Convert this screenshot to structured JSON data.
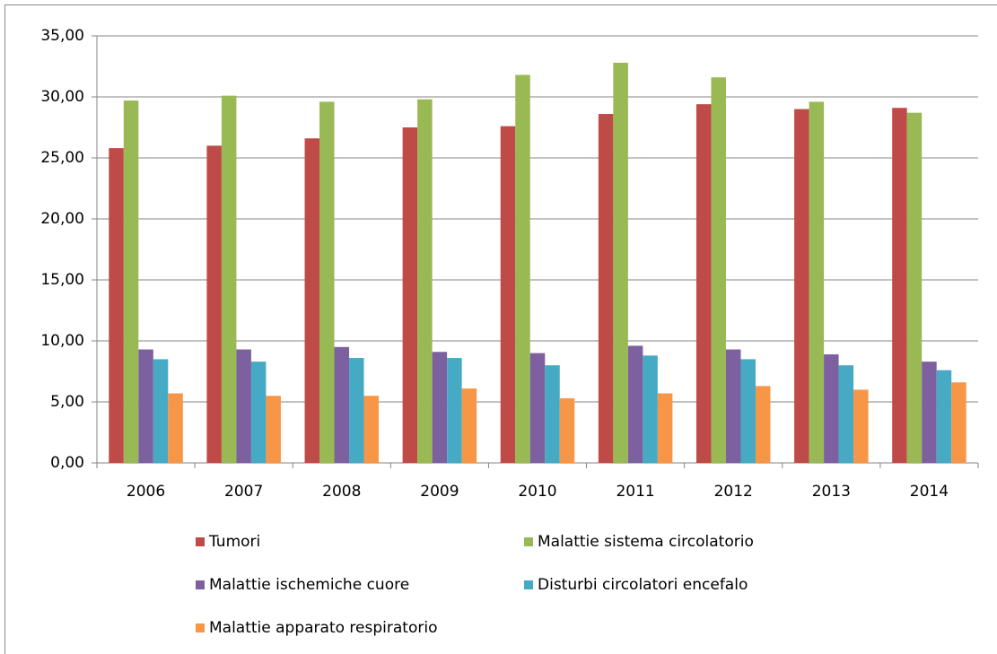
{
  "chart_data": {
    "type": "bar",
    "categories": [
      "2006",
      "2007",
      "2008",
      "2009",
      "2010",
      "2011",
      "2012",
      "2013",
      "2014"
    ],
    "series": [
      {
        "name": "Tumori",
        "color": "#be4b48",
        "values": [
          25.8,
          26.0,
          26.6,
          27.5,
          27.6,
          28.6,
          29.4,
          29.0,
          29.1
        ]
      },
      {
        "name": "Malattie sistema circolatorio",
        "color": "#98b954",
        "values": [
          29.7,
          30.1,
          29.6,
          29.8,
          31.8,
          32.8,
          31.6,
          29.6,
          28.7
        ]
      },
      {
        "name": "Malattie ischemiche cuore",
        "color": "#7d60a0",
        "values": [
          9.3,
          9.3,
          9.5,
          9.1,
          9.0,
          9.6,
          9.3,
          8.9,
          8.3
        ]
      },
      {
        "name": "Disturbi circolatori encefalo",
        "color": "#46aac5",
        "values": [
          8.5,
          8.3,
          8.6,
          8.6,
          8.0,
          8.8,
          8.5,
          8.0,
          7.6
        ]
      },
      {
        "name": "Malattie apparato respiratorio",
        "color": "#f79646",
        "values": [
          5.7,
          5.5,
          5.5,
          6.1,
          5.3,
          5.7,
          6.3,
          6.0,
          6.6
        ]
      }
    ],
    "ylim": [
      0,
      35
    ],
    "yticks": [
      {
        "value": 0,
        "label": "0,00"
      },
      {
        "value": 5,
        "label": "5,00"
      },
      {
        "value": 10,
        "label": "10,00"
      },
      {
        "value": 15,
        "label": "15,00"
      },
      {
        "value": 20,
        "label": "20,00"
      },
      {
        "value": 25,
        "label": "25,00"
      },
      {
        "value": 30,
        "label": "30,00"
      },
      {
        "value": 35,
        "label": "35,00"
      }
    ],
    "grid": true,
    "legend": "bottom"
  }
}
